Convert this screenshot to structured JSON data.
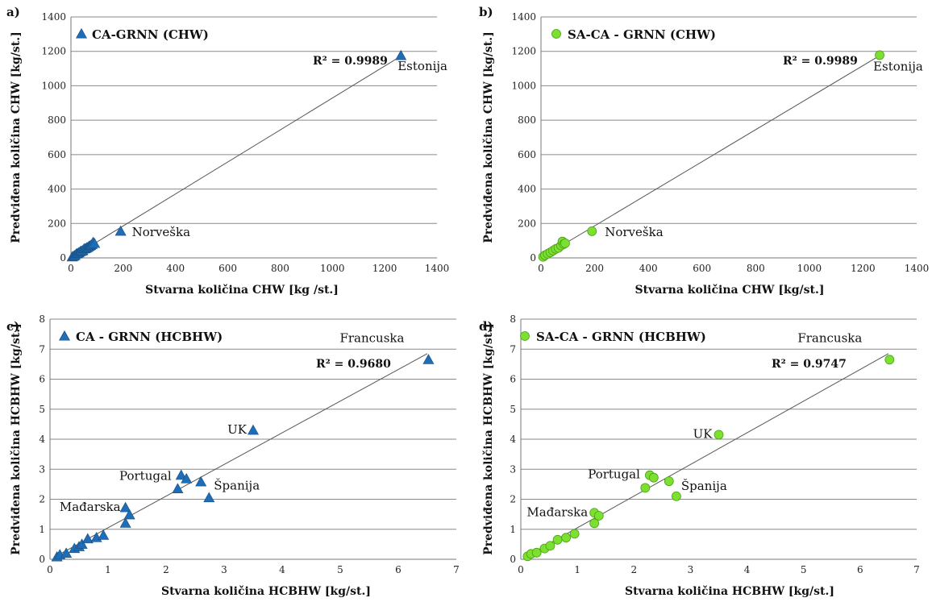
{
  "chart_data": [
    {
      "type": "scatter",
      "panel_label": "a)",
      "legend": "CA-GRNN (CHW)",
      "marker": "triangle",
      "color": "#1f6db5",
      "xlabel": "Stvarna količina CHW [kg /st.]",
      "ylabel": "Predviđena količina CHW [kg/st.]",
      "xlim": [
        0,
        1400
      ],
      "ylim": [
        0,
        1400
      ],
      "xticks": [
        0,
        200,
        400,
        600,
        800,
        1000,
        1200,
        1400
      ],
      "yticks": [
        0,
        200,
        400,
        600,
        800,
        1000,
        1200,
        1400
      ],
      "grid": "horizontal",
      "r2": "R² = 0.9989",
      "trendline": [
        [
          0,
          0
        ],
        [
          1265,
          1175
        ]
      ],
      "points": [
        [
          5,
          6
        ],
        [
          10,
          10
        ],
        [
          15,
          14
        ],
        [
          20,
          22
        ],
        [
          25,
          26
        ],
        [
          30,
          30
        ],
        [
          35,
          36
        ],
        [
          40,
          40
        ],
        [
          45,
          42
        ],
        [
          50,
          52
        ],
        [
          55,
          54
        ],
        [
          60,
          58
        ],
        [
          65,
          62
        ],
        [
          70,
          68
        ],
        [
          75,
          72
        ],
        [
          80,
          78
        ],
        [
          85,
          90
        ],
        [
          90,
          84
        ],
        [
          190,
          155
        ],
        [
          1262,
          1175
        ]
      ],
      "annotations": [
        {
          "text": "Estonija",
          "x": 1262,
          "y": 1175
        },
        {
          "text": "Norveška",
          "x": 190,
          "y": 155
        }
      ]
    },
    {
      "type": "scatter",
      "panel_label": "b)",
      "legend": "SA-CA - GRNN (CHW)",
      "marker": "circle",
      "color": "#7be030",
      "xlabel": "Stvarna količina CHW [kg/st.]",
      "ylabel": "Predviđena količina CHW [kg/st.]",
      "xlim": [
        0,
        1400
      ],
      "ylim": [
        0,
        1400
      ],
      "xticks": [
        0,
        200,
        400,
        600,
        800,
        1000,
        1200,
        1400
      ],
      "yticks": [
        0,
        200,
        400,
        600,
        800,
        1000,
        1200,
        1400
      ],
      "grid": "horizontal",
      "r2": "R² = 0.9989",
      "trendline": [
        [
          0,
          0
        ],
        [
          1265,
          1178
        ]
      ],
      "points": [
        [
          8,
          6
        ],
        [
          15,
          15
        ],
        [
          25,
          24
        ],
        [
          35,
          32
        ],
        [
          45,
          42
        ],
        [
          55,
          52
        ],
        [
          65,
          58
        ],
        [
          75,
          72
        ],
        [
          80,
          95
        ],
        [
          85,
          80
        ],
        [
          90,
          85
        ],
        [
          190,
          155
        ],
        [
          1262,
          1178
        ]
      ],
      "annotations": [
        {
          "text": "Estonija",
          "x": 1262,
          "y": 1178
        },
        {
          "text": "Norveška",
          "x": 190,
          "y": 155
        }
      ]
    },
    {
      "type": "scatter",
      "panel_label": "c)",
      "legend": "CA - GRNN (HCBHW)",
      "marker": "triangle",
      "color": "#1f6db5",
      "xlabel": "Stvarna količina HCBHW [kg/st.]",
      "ylabel": "Predviđena količina HCBHW [kg/st.]",
      "xlim": [
        0,
        7
      ],
      "ylim": [
        0,
        8
      ],
      "xticks": [
        0,
        1,
        2,
        3,
        4,
        5,
        6,
        7
      ],
      "yticks": [
        0,
        1,
        2,
        3,
        4,
        5,
        6,
        7,
        8
      ],
      "grid": "horizontal",
      "r2": "R² = 0.9680",
      "trendline": [
        [
          0.1,
          0.1
        ],
        [
          6.5,
          6.85
        ]
      ],
      "points": [
        [
          0.12,
          0.08
        ],
        [
          0.17,
          0.15
        ],
        [
          0.28,
          0.2
        ],
        [
          0.42,
          0.36
        ],
        [
          0.5,
          0.42
        ],
        [
          0.55,
          0.5
        ],
        [
          0.65,
          0.68
        ],
        [
          0.8,
          0.72
        ],
        [
          0.92,
          0.8
        ],
        [
          1.3,
          1.72
        ],
        [
          1.3,
          1.2
        ],
        [
          1.37,
          1.48
        ],
        [
          2.2,
          2.35
        ],
        [
          2.26,
          2.8
        ],
        [
          2.35,
          2.68
        ],
        [
          2.6,
          2.58
        ],
        [
          2.74,
          2.05
        ],
        [
          3.5,
          4.3
        ],
        [
          6.52,
          6.65
        ]
      ],
      "annotations": [
        {
          "text": "Francuska",
          "x": 6.52,
          "y": 6.65
        },
        {
          "text": "UK",
          "x": 3.5,
          "y": 4.3
        },
        {
          "text": "Portugal",
          "x": 2.26,
          "y": 2.8
        },
        {
          "text": "Španija",
          "x": 2.74,
          "y": 2.05
        },
        {
          "text": "Mađarska",
          "x": 1.3,
          "y": 1.72
        }
      ]
    },
    {
      "type": "scatter",
      "panel_label": "d)",
      "legend": "SA-CA - GRNN (HCBHW)",
      "marker": "circle",
      "color": "#7be030",
      "xlabel": "Stvarna količina HCBHW [kg/st.]",
      "ylabel": "Predviđena količina HCBHW [kg/st.]",
      "xlim": [
        0,
        7
      ],
      "ylim": [
        0,
        8
      ],
      "xticks": [
        0,
        1,
        2,
        3,
        4,
        5,
        6,
        7
      ],
      "yticks": [
        0,
        1,
        2,
        3,
        4,
        5,
        6,
        7,
        8
      ],
      "grid": "horizontal",
      "r2": "R² = 0.9747",
      "trendline": [
        [
          0.1,
          0.1
        ],
        [
          6.5,
          6.85
        ]
      ],
      "points": [
        [
          0.12,
          0.1
        ],
        [
          0.18,
          0.18
        ],
        [
          0.28,
          0.22
        ],
        [
          0.42,
          0.36
        ],
        [
          0.52,
          0.45
        ],
        [
          0.65,
          0.65
        ],
        [
          0.8,
          0.72
        ],
        [
          0.95,
          0.85
        ],
        [
          1.3,
          1.55
        ],
        [
          1.3,
          1.2
        ],
        [
          1.38,
          1.45
        ],
        [
          2.2,
          2.38
        ],
        [
          2.28,
          2.8
        ],
        [
          2.35,
          2.72
        ],
        [
          2.62,
          2.6
        ],
        [
          2.75,
          2.1
        ],
        [
          3.5,
          4.15
        ],
        [
          6.52,
          6.65
        ]
      ],
      "annotations": [
        {
          "text": "Francuska",
          "x": 6.52,
          "y": 6.65
        },
        {
          "text": "UK",
          "x": 3.5,
          "y": 4.15
        },
        {
          "text": "Portugal",
          "x": 2.28,
          "y": 2.8
        },
        {
          "text": "Španija",
          "x": 2.75,
          "y": 2.1
        },
        {
          "text": "Mađarska",
          "x": 1.3,
          "y": 1.55
        }
      ]
    }
  ]
}
